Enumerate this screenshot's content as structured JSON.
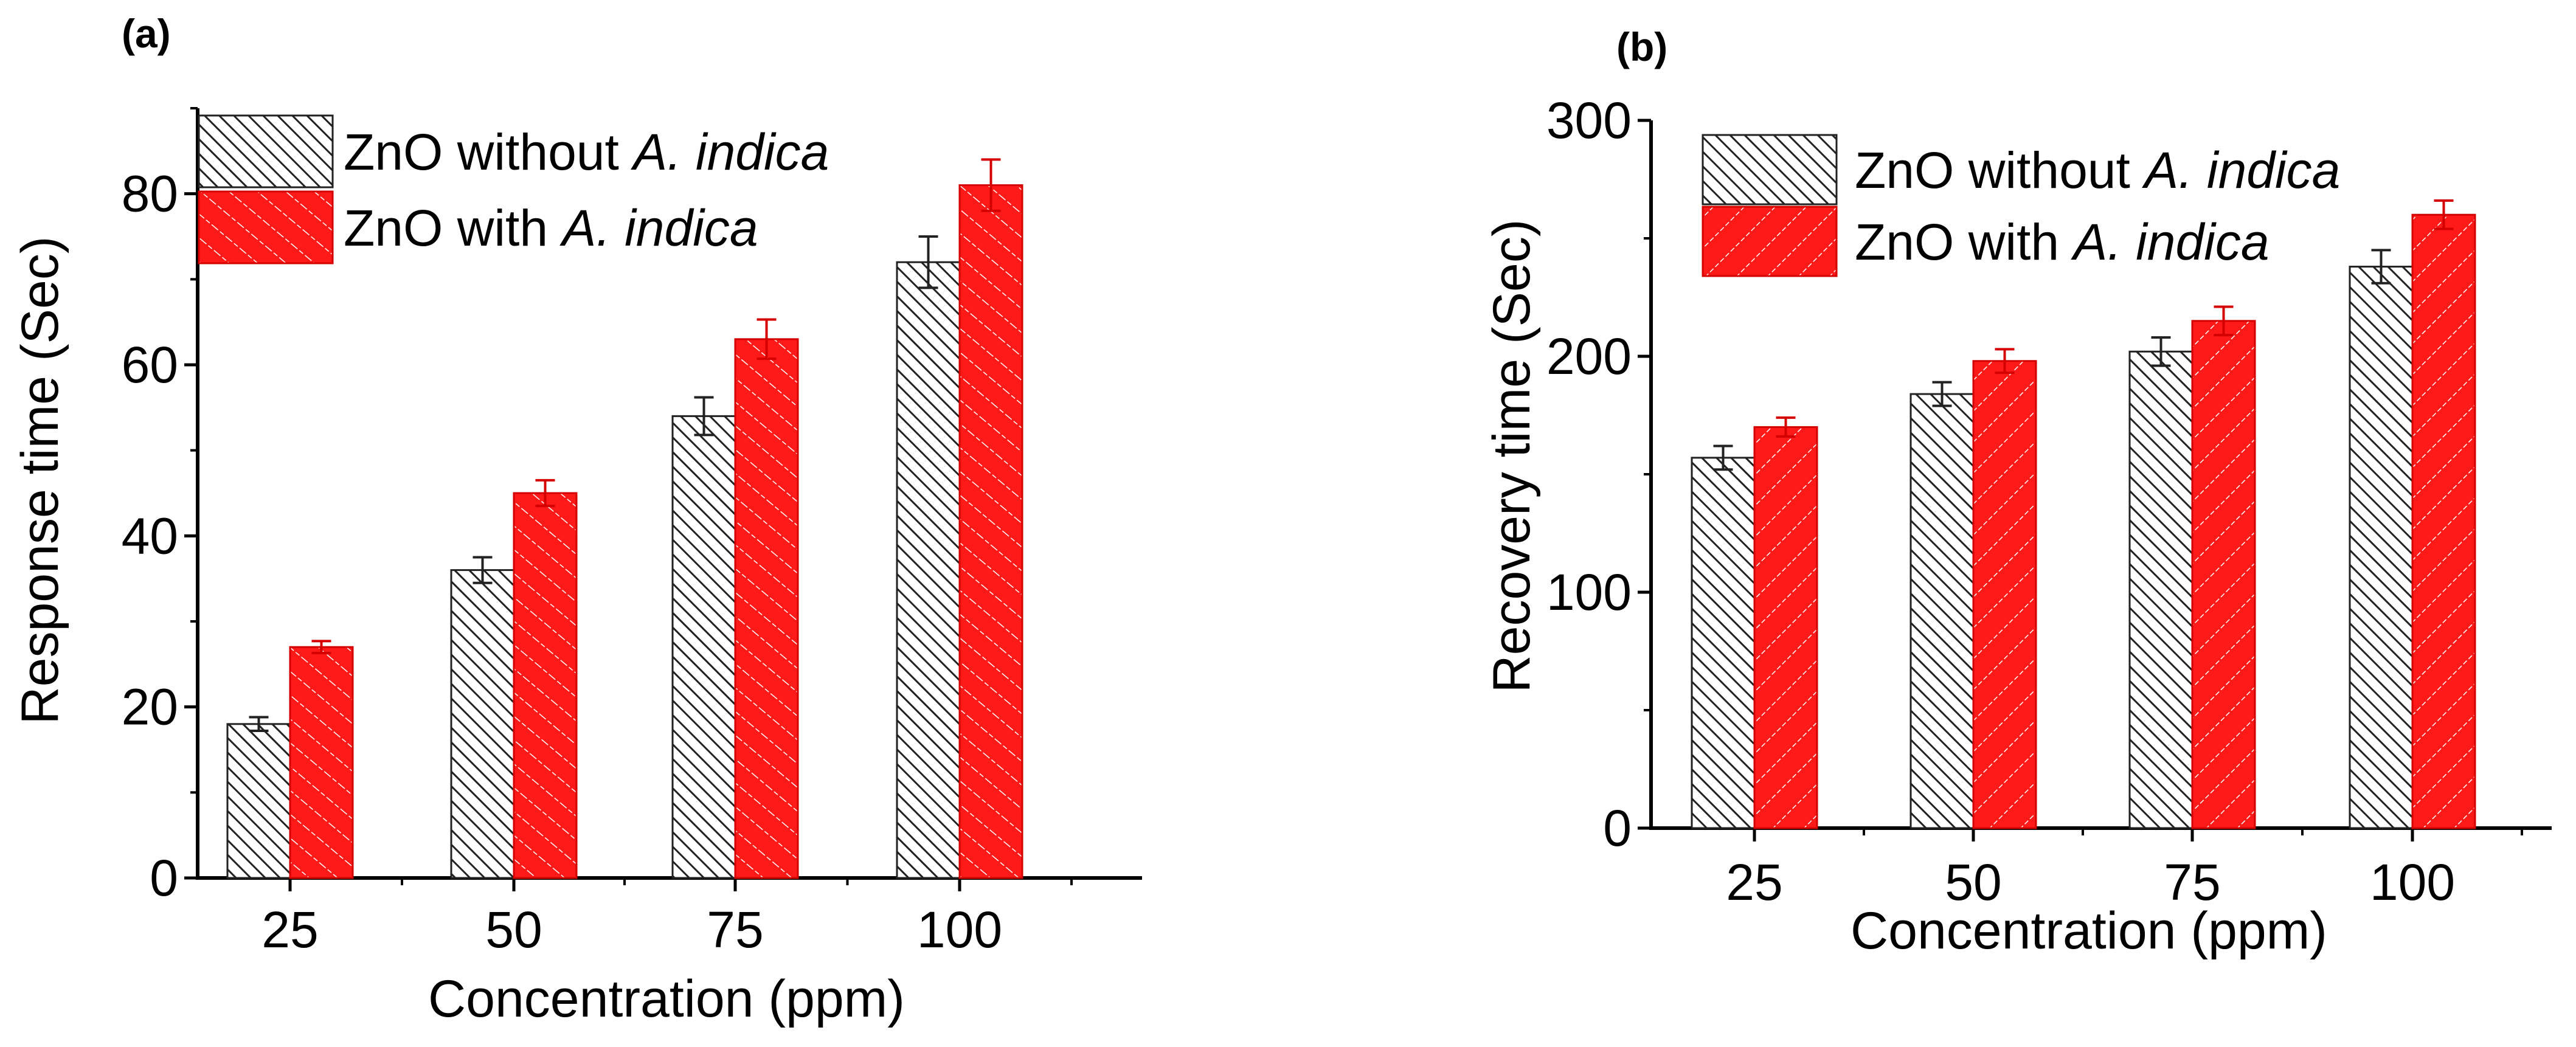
{
  "figure": {
    "colors": {
      "with_fill": "#ff1a1a",
      "with_edge": "#d40000",
      "with_hatch": "#ffffff",
      "without_fill": "#ffffff",
      "without_edge": "#222222",
      "without_hatch": "#222222",
      "axis": "#000000"
    }
  },
  "chart_data": [
    {
      "panel": "(a)",
      "type": "bar",
      "title": "",
      "xlabel": "Concentration (ppm)",
      "ylabel": "Response time (Sec)",
      "categories": [
        "25",
        "50",
        "75",
        "100"
      ],
      "ylim": [
        0,
        90
      ],
      "yticks": [
        0,
        20,
        40,
        60,
        80
      ],
      "grid": false,
      "legend_position": "top-left",
      "series": [
        {
          "name": "ZnO without A. indica",
          "legend_prefix": "ZnO without ",
          "legend_italic": "A. indica",
          "key": "without",
          "values": [
            18,
            36,
            54,
            72
          ],
          "errors": [
            0.8,
            1.5,
            2.2,
            3.0
          ]
        },
        {
          "name": "ZnO with A. indica",
          "legend_prefix": "ZnO with ",
          "legend_italic": "A. indica",
          "key": "with",
          "values": [
            27,
            45,
            63,
            81
          ],
          "errors": [
            0.7,
            1.5,
            2.3,
            3.0
          ]
        }
      ]
    },
    {
      "panel": "(b)",
      "type": "bar",
      "title": "",
      "xlabel": "Concentration (ppm)",
      "ylabel": "Recovery time (Sec)",
      "categories": [
        "25",
        "50",
        "75",
        "100"
      ],
      "ylim": [
        0,
        300
      ],
      "yticks": [
        0,
        100,
        200,
        300
      ],
      "grid": false,
      "legend_position": "top-left",
      "series": [
        {
          "name": "ZnO without A. indica",
          "legend_prefix": "ZnO without ",
          "legend_italic": "A. indica",
          "key": "without",
          "values": [
            157,
            184,
            202,
            238
          ],
          "errors": [
            5,
            5,
            6,
            7
          ]
        },
        {
          "name": "ZnO with A. indica",
          "legend_prefix": "ZnO with ",
          "legend_italic": "A. indica",
          "key": "with",
          "values": [
            170,
            198,
            215,
            260
          ],
          "errors": [
            4,
            5,
            6,
            6
          ]
        }
      ]
    }
  ]
}
